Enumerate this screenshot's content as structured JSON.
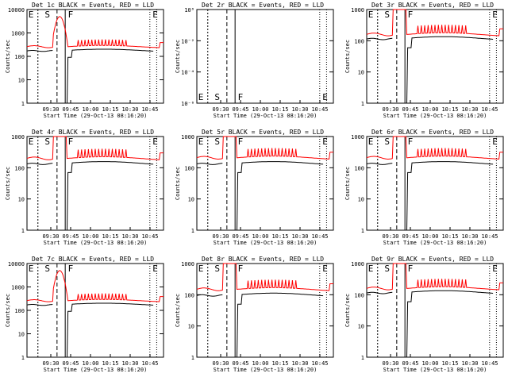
{
  "figure": {
    "colors": {
      "events": "#000000",
      "lld": "#ff0000",
      "background": "#ffffff"
    },
    "xlabel": "Start Time (29-Oct-13 08:16:20)",
    "ylabel": "Counts/sec",
    "marker_labels": [
      "E",
      "S",
      "F",
      "E"
    ]
  },
  "chart_data": [
    {
      "type": "line",
      "title": "Det 1c BLACK = Events, RED = LLD",
      "x_ticks": [
        "09:30",
        "09:45",
        "10:00",
        "10:15",
        "10:30",
        "10:45"
      ],
      "y_ticks": [
        "1",
        "10",
        "100",
        "1000",
        "10000"
      ],
      "ylim": [
        1,
        10000
      ],
      "y_scale": "log",
      "series": [
        {
          "name": "Events",
          "color": "#000000",
          "profile": "events",
          "base": 180
        },
        {
          "name": "LLD",
          "color": "#ff0000",
          "profile": "lld_spike",
          "base": 260,
          "peak": 5000
        }
      ],
      "marker_labels": [
        "E",
        "S",
        "F",
        "E"
      ]
    },
    {
      "type": "line",
      "title": "Det 2r BLACK = Events, RED = LLD",
      "x_ticks": [
        "09:30",
        "09:45",
        "10:00",
        "10:15",
        "10:30",
        "10:45"
      ],
      "y_ticks": [
        "10⁰",
        "10⁻²",
        "10⁻⁴",
        "10⁻⁶"
      ],
      "y_scale": "log",
      "series": [],
      "marker_labels": [
        "E",
        "S",
        "F",
        "E"
      ]
    },
    {
      "type": "line",
      "title": "Det 3r BLACK = Events, RED = LLD",
      "x_ticks": [
        "09:30",
        "09:45",
        "10:00",
        "10:15",
        "10:30",
        "10:45"
      ],
      "y_ticks": [
        "1",
        "10",
        "100",
        "1000"
      ],
      "ylim": [
        1,
        1000
      ],
      "y_scale": "log",
      "series": [
        {
          "name": "Events",
          "color": "#000000",
          "profile": "events",
          "base": 120
        },
        {
          "name": "LLD",
          "color": "#ff0000",
          "profile": "lld_sat",
          "base": 160
        }
      ],
      "marker_labels": [
        "E",
        "S",
        "F",
        "E"
      ]
    },
    {
      "type": "line",
      "title": "Det 4r BLACK = Events, RED = LLD",
      "x_ticks": [
        "09:30",
        "09:45",
        "10:00",
        "10:15",
        "10:30",
        "10:45"
      ],
      "y_ticks": [
        "1",
        "10",
        "100",
        "1000"
      ],
      "ylim": [
        1,
        1000
      ],
      "y_scale": "log",
      "series": [
        {
          "name": "Events",
          "color": "#000000",
          "profile": "events",
          "base": 140
        },
        {
          "name": "LLD",
          "color": "#ff0000",
          "profile": "lld_sat",
          "base": 200
        }
      ],
      "marker_labels": [
        "E",
        "S",
        "F",
        "E"
      ]
    },
    {
      "type": "line",
      "title": "Det 5r BLACK = Events, RED = LLD",
      "x_ticks": [
        "09:30",
        "09:45",
        "10:00",
        "10:15",
        "10:30",
        "10:45"
      ],
      "y_ticks": [
        "1",
        "10",
        "100",
        "1000"
      ],
      "ylim": [
        1,
        1000
      ],
      "y_scale": "log",
      "series": [
        {
          "name": "Events",
          "color": "#000000",
          "profile": "events",
          "base": 140
        },
        {
          "name": "LLD",
          "color": "#ff0000",
          "profile": "lld_sat",
          "base": 210
        }
      ],
      "marker_labels": [
        "E",
        "S",
        "F",
        "E"
      ]
    },
    {
      "type": "line",
      "title": "Det 6r BLACK = Events, RED = LLD",
      "x_ticks": [
        "09:30",
        "09:45",
        "10:00",
        "10:15",
        "10:30",
        "10:45"
      ],
      "y_ticks": [
        "1",
        "10",
        "100",
        "1000"
      ],
      "ylim": [
        1,
        1000
      ],
      "y_scale": "log",
      "series": [
        {
          "name": "Events",
          "color": "#000000",
          "profile": "events",
          "base": 140
        },
        {
          "name": "LLD",
          "color": "#ff0000",
          "profile": "lld_sat",
          "base": 210
        }
      ],
      "marker_labels": [
        "E",
        "S",
        "F",
        "E"
      ]
    },
    {
      "type": "line",
      "title": "Det 7c BLACK = Events, RED = LLD",
      "x_ticks": [
        "09:30",
        "09:45",
        "10:00",
        "10:15",
        "10:30",
        "10:45"
      ],
      "y_ticks": [
        "1",
        "10",
        "100",
        "1000",
        "10000"
      ],
      "ylim": [
        1,
        10000
      ],
      "y_scale": "log",
      "series": [
        {
          "name": "Events",
          "color": "#000000",
          "profile": "events",
          "base": 180
        },
        {
          "name": "LLD",
          "color": "#ff0000",
          "profile": "lld_spike",
          "base": 260,
          "peak": 5000
        }
      ],
      "marker_labels": [
        "E",
        "S",
        "F",
        "E"
      ]
    },
    {
      "type": "line",
      "title": "Det 8r BLACK = Events, RED = LLD",
      "x_ticks": [
        "09:30",
        "09:45",
        "10:00",
        "10:15",
        "10:30",
        "10:45"
      ],
      "y_ticks": [
        "1",
        "10",
        "100",
        "1000"
      ],
      "ylim": [
        1,
        1000
      ],
      "y_scale": "log",
      "series": [
        {
          "name": "Events",
          "color": "#000000",
          "profile": "events",
          "base": 100
        },
        {
          "name": "LLD",
          "color": "#ff0000",
          "profile": "lld_sat",
          "base": 150
        }
      ],
      "marker_labels": [
        "E",
        "S",
        "F",
        "E"
      ]
    },
    {
      "type": "line",
      "title": "Det 9r BLACK = Events, RED = LLD",
      "x_ticks": [
        "09:30",
        "09:45",
        "10:00",
        "10:15",
        "10:30",
        "10:45"
      ],
      "y_ticks": [
        "1",
        "10",
        "100",
        "1000"
      ],
      "ylim": [
        1,
        1000
      ],
      "y_scale": "log",
      "series": [
        {
          "name": "Events",
          "color": "#000000",
          "profile": "events",
          "base": 120
        },
        {
          "name": "LLD",
          "color": "#ff0000",
          "profile": "lld_sat",
          "base": 160
        }
      ],
      "marker_labels": [
        "E",
        "S",
        "F",
        "E"
      ]
    }
  ]
}
